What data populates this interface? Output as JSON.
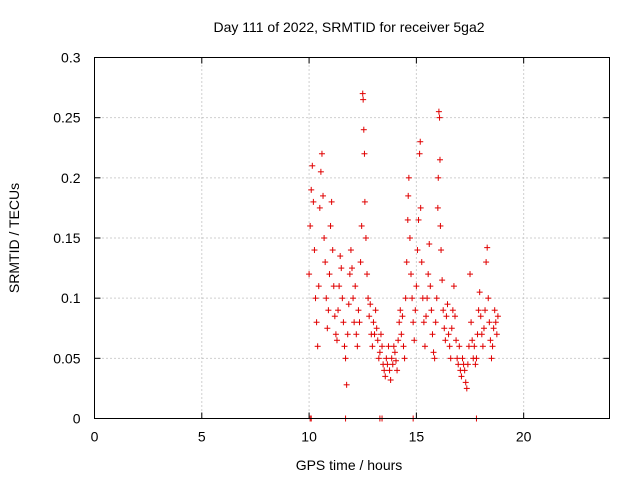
{
  "chart_data": {
    "type": "scatter",
    "title": "Day 111 of 2022, SRMTID for receiver 5ga2",
    "xlabel": "GPS time / hours",
    "ylabel": "SRMTID / TECUs",
    "xlim": [
      0,
      24
    ],
    "ylim": [
      0,
      0.3
    ],
    "x_ticks": [
      0,
      5,
      10,
      15,
      20
    ],
    "y_ticks": [
      0,
      0.05,
      0.1,
      0.15,
      0.2,
      0.25,
      0.3
    ],
    "x_tick_labels": [
      "0",
      "5",
      "10",
      "15",
      "20"
    ],
    "y_tick_labels": [
      "0",
      "0.05",
      "0.1",
      "0.15",
      "0.2",
      "0.25",
      "0.3"
    ],
    "grid": true,
    "marker": "+",
    "color": "#e00000",
    "series": [
      {
        "name": "5ga2",
        "points": [
          [
            10.05,
            0.0
          ],
          [
            10.1,
            0.0
          ],
          [
            11.7,
            0.0
          ],
          [
            13.3,
            0.0
          ],
          [
            13.4,
            0.0
          ],
          [
            14.85,
            0.0
          ],
          [
            17.8,
            0.0
          ],
          [
            10.0,
            0.12
          ],
          [
            10.05,
            0.16
          ],
          [
            10.1,
            0.19
          ],
          [
            10.15,
            0.21
          ],
          [
            10.2,
            0.18
          ],
          [
            10.25,
            0.14
          ],
          [
            10.3,
            0.1
          ],
          [
            10.35,
            0.08
          ],
          [
            10.4,
            0.06
          ],
          [
            10.45,
            0.11
          ],
          [
            10.5,
            0.175
          ],
          [
            10.55,
            0.205
          ],
          [
            10.6,
            0.22
          ],
          [
            10.65,
            0.185
          ],
          [
            10.7,
            0.15
          ],
          [
            10.75,
            0.13
          ],
          [
            10.8,
            0.1
          ],
          [
            10.85,
            0.075
          ],
          [
            10.9,
            0.09
          ],
          [
            10.95,
            0.12
          ],
          [
            11.0,
            0.16
          ],
          [
            11.05,
            0.18
          ],
          [
            11.1,
            0.14
          ],
          [
            11.15,
            0.11
          ],
          [
            11.2,
            0.085
          ],
          [
            11.25,
            0.07
          ],
          [
            11.3,
            0.065
          ],
          [
            11.35,
            0.09
          ],
          [
            11.4,
            0.11
          ],
          [
            11.45,
            0.135
          ],
          [
            11.5,
            0.125
          ],
          [
            11.55,
            0.1
          ],
          [
            11.6,
            0.08
          ],
          [
            11.65,
            0.06
          ],
          [
            11.7,
            0.05
          ],
          [
            11.75,
            0.028
          ],
          [
            11.8,
            0.07
          ],
          [
            11.85,
            0.095
          ],
          [
            11.9,
            0.12
          ],
          [
            11.95,
            0.14
          ],
          [
            12.0,
            0.125
          ],
          [
            12.05,
            0.1
          ],
          [
            12.1,
            0.08
          ],
          [
            12.15,
            0.11
          ],
          [
            12.2,
            0.07
          ],
          [
            12.25,
            0.06
          ],
          [
            12.3,
            0.09
          ],
          [
            12.35,
            0.08
          ],
          [
            12.4,
            0.13
          ],
          [
            12.45,
            0.16
          ],
          [
            12.5,
            0.27
          ],
          [
            12.52,
            0.265
          ],
          [
            12.55,
            0.24
          ],
          [
            12.58,
            0.22
          ],
          [
            12.6,
            0.18
          ],
          [
            12.65,
            0.15
          ],
          [
            12.7,
            0.12
          ],
          [
            12.75,
            0.1
          ],
          [
            12.8,
            0.085
          ],
          [
            12.85,
            0.095
          ],
          [
            12.9,
            0.07
          ],
          [
            12.95,
            0.06
          ],
          [
            13.0,
            0.08
          ],
          [
            13.05,
            0.07
          ],
          [
            13.1,
            0.09
          ],
          [
            13.15,
            0.075
          ],
          [
            13.2,
            0.065
          ],
          [
            13.25,
            0.05
          ],
          [
            13.3,
            0.055
          ],
          [
            13.35,
            0.07
          ],
          [
            13.4,
            0.06
          ],
          [
            13.45,
            0.045
          ],
          [
            13.5,
            0.04
          ],
          [
            13.55,
            0.035
          ],
          [
            13.6,
            0.05
          ],
          [
            13.65,
            0.045
          ],
          [
            13.7,
            0.06
          ],
          [
            13.75,
            0.04
          ],
          [
            13.8,
            0.032
          ],
          [
            13.85,
            0.05
          ],
          [
            13.9,
            0.045
          ],
          [
            13.95,
            0.06
          ],
          [
            14.0,
            0.055
          ],
          [
            14.05,
            0.048
          ],
          [
            14.1,
            0.04
          ],
          [
            14.15,
            0.065
          ],
          [
            14.2,
            0.08
          ],
          [
            14.25,
            0.09
          ],
          [
            14.3,
            0.07
          ],
          [
            14.35,
            0.085
          ],
          [
            14.4,
            0.06
          ],
          [
            14.45,
            0.05
          ],
          [
            14.5,
            0.1
          ],
          [
            14.55,
            0.13
          ],
          [
            14.6,
            0.165
          ],
          [
            14.62,
            0.185
          ],
          [
            14.65,
            0.2
          ],
          [
            14.7,
            0.15
          ],
          [
            14.75,
            0.12
          ],
          [
            14.8,
            0.1
          ],
          [
            14.85,
            0.08
          ],
          [
            14.9,
            0.065
          ],
          [
            14.95,
            0.09
          ],
          [
            15.0,
            0.11
          ],
          [
            15.05,
            0.14
          ],
          [
            15.1,
            0.165
          ],
          [
            15.15,
            0.22
          ],
          [
            15.18,
            0.23
          ],
          [
            15.2,
            0.175
          ],
          [
            15.25,
            0.13
          ],
          [
            15.3,
            0.1
          ],
          [
            15.35,
            0.08
          ],
          [
            15.4,
            0.06
          ],
          [
            15.45,
            0.085
          ],
          [
            15.5,
            0.1
          ],
          [
            15.55,
            0.12
          ],
          [
            15.6,
            0.145
          ],
          [
            15.65,
            0.11
          ],
          [
            15.7,
            0.09
          ],
          [
            15.75,
            0.07
          ],
          [
            15.8,
            0.055
          ],
          [
            15.85,
            0.05
          ],
          [
            15.9,
            0.08
          ],
          [
            15.95,
            0.1
          ],
          [
            16.0,
            0.175
          ],
          [
            16.02,
            0.2
          ],
          [
            16.05,
            0.255
          ],
          [
            16.08,
            0.25
          ],
          [
            16.1,
            0.215
          ],
          [
            16.12,
            0.16
          ],
          [
            16.15,
            0.14
          ],
          [
            16.2,
            0.115
          ],
          [
            16.25,
            0.09
          ],
          [
            16.3,
            0.075
          ],
          [
            16.35,
            0.065
          ],
          [
            16.4,
            0.085
          ],
          [
            16.45,
            0.095
          ],
          [
            16.5,
            0.07
          ],
          [
            16.55,
            0.06
          ],
          [
            16.6,
            0.05
          ],
          [
            16.65,
            0.075
          ],
          [
            16.7,
            0.09
          ],
          [
            16.75,
            0.11
          ],
          [
            16.8,
            0.085
          ],
          [
            16.85,
            0.065
          ],
          [
            16.9,
            0.05
          ],
          [
            16.95,
            0.045
          ],
          [
            17.0,
            0.06
          ],
          [
            17.05,
            0.04
          ],
          [
            17.1,
            0.035
          ],
          [
            17.15,
            0.05
          ],
          [
            17.2,
            0.045
          ],
          [
            17.25,
            0.04
          ],
          [
            17.3,
            0.03
          ],
          [
            17.35,
            0.025
          ],
          [
            17.4,
            0.045
          ],
          [
            17.45,
            0.06
          ],
          [
            17.5,
            0.12
          ],
          [
            17.55,
            0.08
          ],
          [
            17.6,
            0.065
          ],
          [
            17.65,
            0.05
          ],
          [
            17.7,
            0.06
          ],
          [
            17.75,
            0.045
          ],
          [
            17.8,
            0.05
          ],
          [
            17.85,
            0.07
          ],
          [
            17.9,
            0.09
          ],
          [
            17.95,
            0.105
          ],
          [
            18.0,
            0.085
          ],
          [
            18.05,
            0.07
          ],
          [
            18.1,
            0.06
          ],
          [
            18.15,
            0.075
          ],
          [
            18.2,
            0.09
          ],
          [
            18.25,
            0.13
          ],
          [
            18.3,
            0.142
          ],
          [
            18.35,
            0.1
          ],
          [
            18.4,
            0.08
          ],
          [
            18.45,
            0.065
          ],
          [
            18.5,
            0.05
          ],
          [
            18.55,
            0.06
          ],
          [
            18.6,
            0.075
          ],
          [
            18.65,
            0.09
          ],
          [
            18.7,
            0.08
          ],
          [
            18.75,
            0.07
          ],
          [
            18.8,
            0.085
          ]
        ]
      }
    ]
  }
}
